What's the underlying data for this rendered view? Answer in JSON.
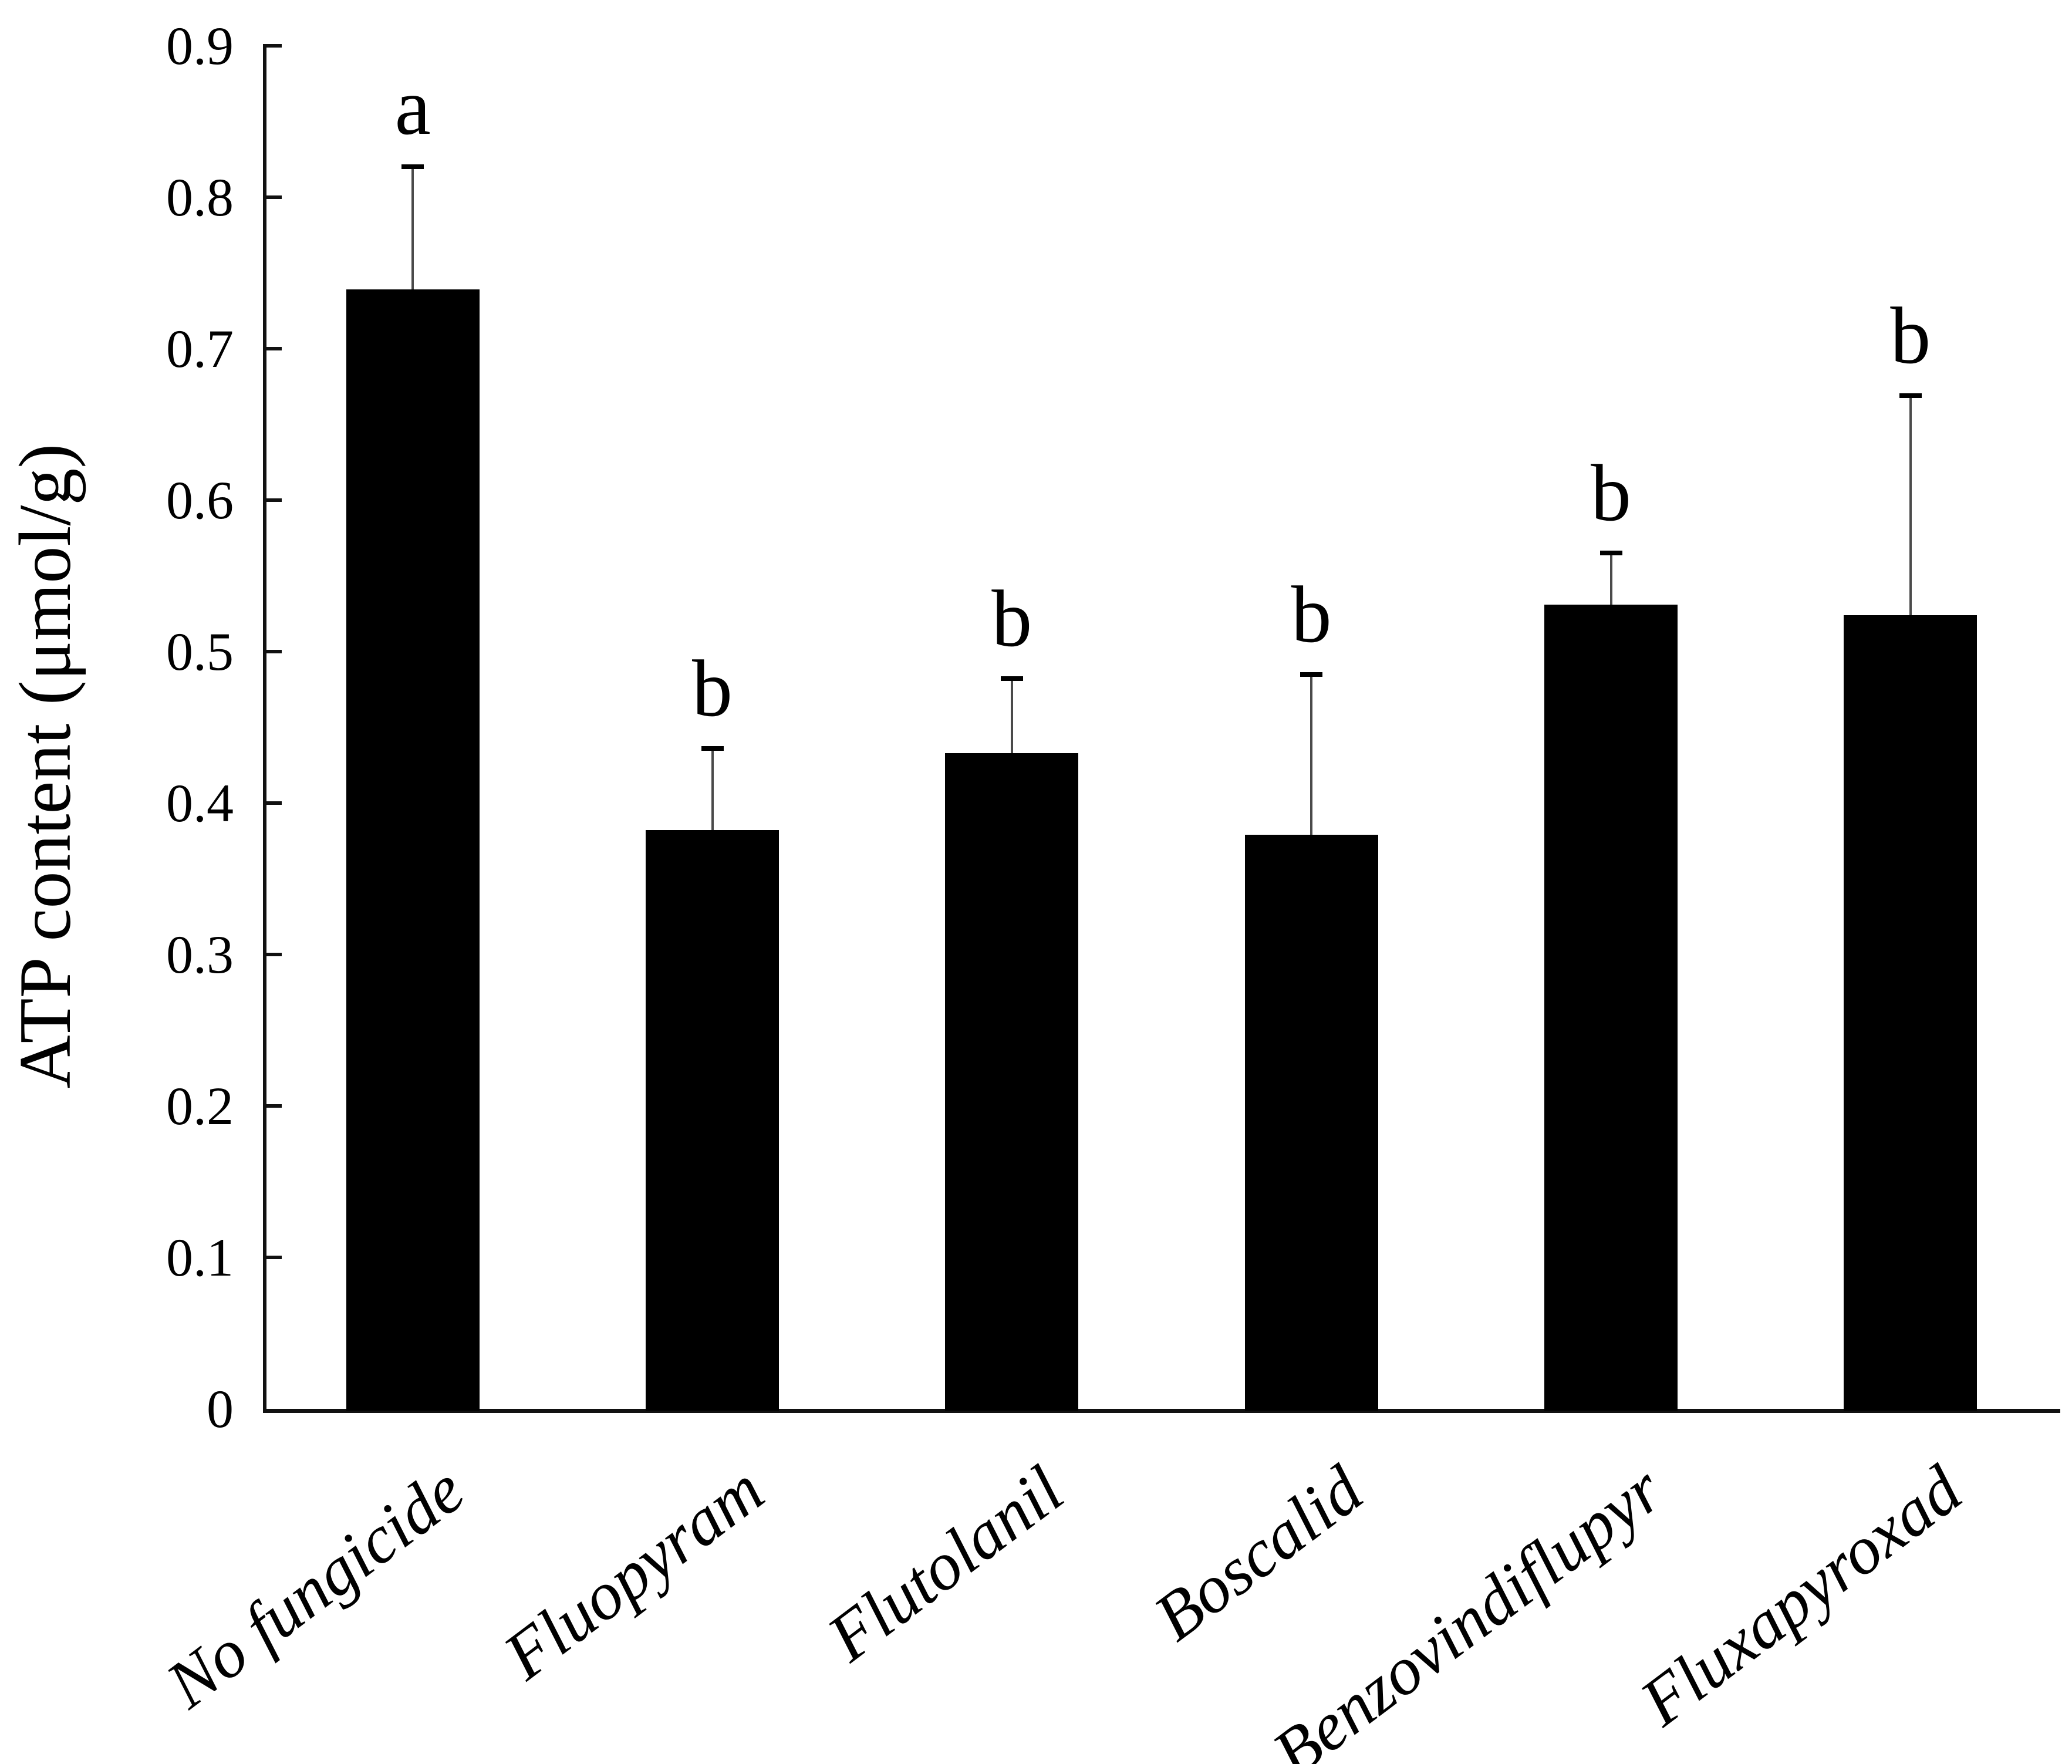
{
  "chart_data": {
    "type": "bar",
    "title": "",
    "xlabel": "",
    "ylabel": "ATP content (μmol/g)",
    "ylim": [
      0,
      0.9
    ],
    "ytick_step": 0.1,
    "ytick_labels": [
      "0.9",
      "0.8",
      "0.7",
      "0.6",
      "0.5",
      "0.4",
      "0.3",
      "0.2",
      "0.1",
      "0"
    ],
    "categories": [
      "No fungicide",
      "Fluopyram",
      "Flutolanil",
      "Boscalid",
      "Benzovindiflupyr",
      "Fluxapyroxad"
    ],
    "series": [
      {
        "name": "ATP content",
        "values": [
          0.739,
          0.382,
          0.433,
          0.379,
          0.531,
          0.524
        ],
        "error_upper": [
          0.081,
          0.054,
          0.049,
          0.106,
          0.034,
          0.145
        ],
        "sig_letters": [
          "a",
          "b",
          "b",
          "b",
          "b",
          "b"
        ]
      }
    ],
    "bar_color": "#000000",
    "error_bar_color": "#4a4a4a",
    "axis_color": "#111111",
    "grid": false,
    "legend_position": "none"
  }
}
